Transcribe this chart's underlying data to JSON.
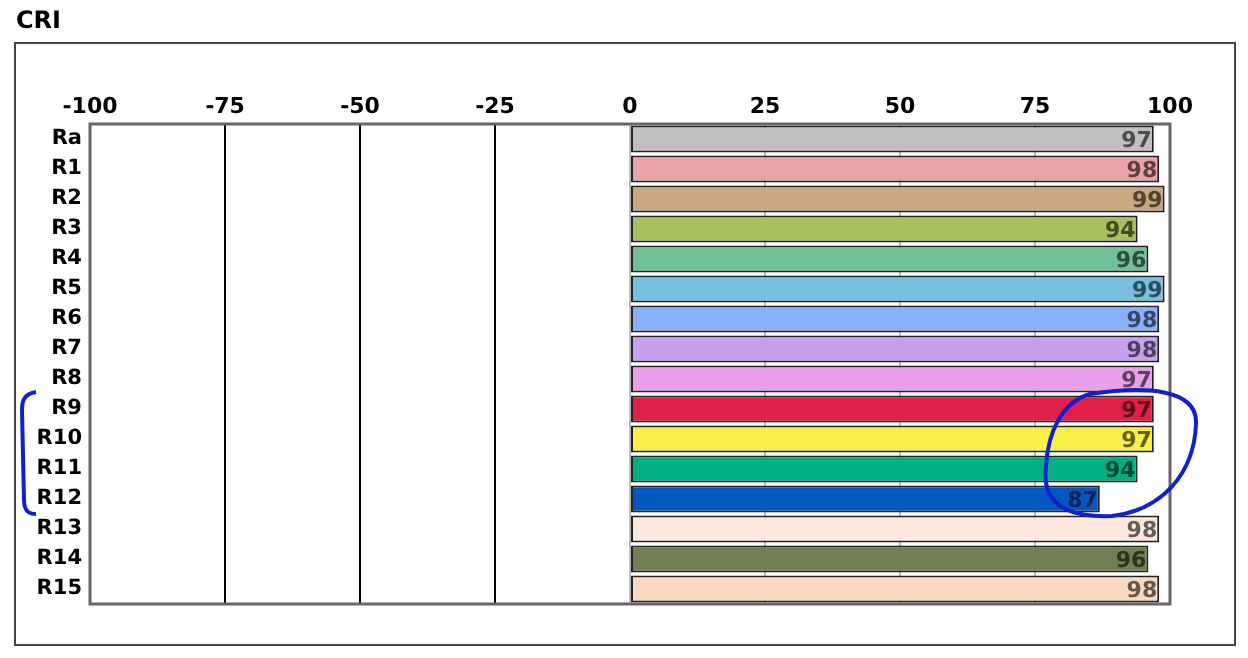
{
  "chart_data": {
    "type": "bar",
    "orientation": "horizontal",
    "title": "CRI",
    "categories": [
      "Ra",
      "R1",
      "R2",
      "R3",
      "R4",
      "R5",
      "R6",
      "R7",
      "R8",
      "R9",
      "R10",
      "R11",
      "R12",
      "R13",
      "R14",
      "R15"
    ],
    "values": [
      97,
      98,
      99,
      94,
      96,
      99,
      98,
      98,
      97,
      97,
      97,
      94,
      87,
      98,
      96,
      98
    ],
    "colors": [
      "#c0c0c0",
      "#e8a2a8",
      "#c8a880",
      "#a8c060",
      "#70c098",
      "#78c0e0",
      "#88b0f8",
      "#c8a0f0",
      "#e8a0e8",
      "#e02048",
      "#f8f048",
      "#00b080",
      "#0058c0",
      "#fce8dc",
      "#708050",
      "#f8d8c0"
    ],
    "xlim": [
      -100,
      100
    ],
    "xticks": [
      -100,
      -75,
      -50,
      -25,
      0,
      25,
      50,
      75,
      100
    ],
    "grid": "x",
    "data_labels": true
  }
}
